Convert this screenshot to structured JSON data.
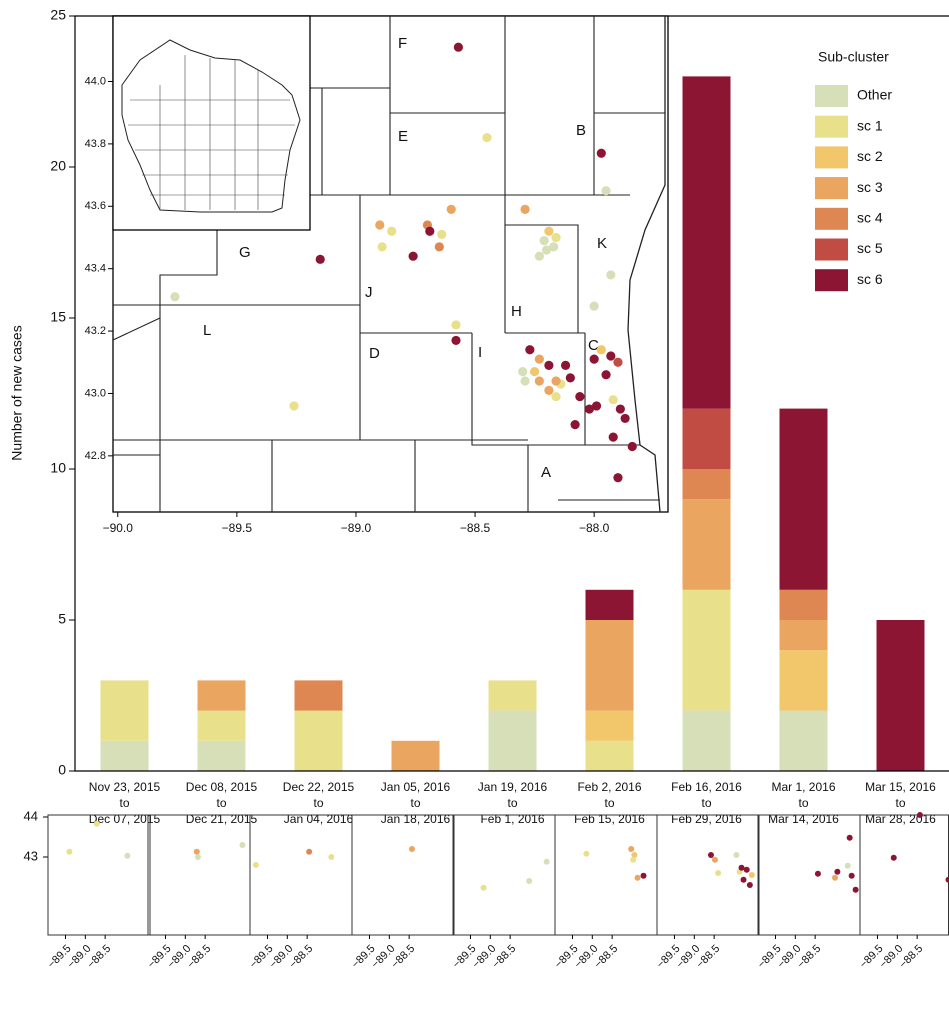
{
  "chart_data": [
    {
      "type": "bar",
      "y_label": "Number of new cases",
      "legend_title": "Sub-cluster",
      "categories": [
        [
          "Nov 23, 2015",
          "to",
          "Dec 07, 2015"
        ],
        [
          "Dec 08, 2015",
          "to",
          "Dec 21, 2015"
        ],
        [
          "Dec 22, 2015",
          "to",
          "Jan 04, 2016"
        ],
        [
          "Jan 05, 2016",
          "to",
          "Jan 18, 2016"
        ],
        [
          "Jan 19, 2016",
          "to",
          "Feb 1, 2016"
        ],
        [
          "Feb 2, 2016",
          "to",
          "Feb 15, 2016"
        ],
        [
          "Feb 16, 2016",
          "to",
          "Feb 29, 2016"
        ],
        [
          "Mar 1, 2016",
          "to",
          "Mar 14, 2016"
        ],
        [
          "Mar 15, 2016",
          "to",
          "Mar 28, 2016"
        ]
      ],
      "series": [
        {
          "name": "Other",
          "color": "#d6dfb8",
          "values": [
            1,
            1,
            0,
            0,
            2,
            0,
            2,
            2,
            0
          ]
        },
        {
          "name": "sc 1",
          "color": "#e9e08c",
          "values": [
            2,
            1,
            2,
            0,
            1,
            1,
            4,
            0,
            0
          ]
        },
        {
          "name": "sc 2",
          "color": "#f2c66a",
          "values": [
            0,
            0,
            0,
            0,
            0,
            1,
            0,
            2,
            0
          ]
        },
        {
          "name": "sc 3",
          "color": "#eaa560",
          "values": [
            0,
            1,
            0,
            1,
            0,
            3,
            3,
            1,
            0
          ]
        },
        {
          "name": "sc 4",
          "color": "#de8752",
          "values": [
            0,
            0,
            1,
            0,
            0,
            0,
            1,
            1,
            0
          ]
        },
        {
          "name": "sc 5",
          "color": "#c04c44",
          "values": [
            0,
            0,
            0,
            0,
            0,
            0,
            2,
            0,
            0
          ]
        },
        {
          "name": "sc 6",
          "color": "#8c1534",
          "values": [
            0,
            0,
            0,
            0,
            0,
            1,
            11,
            6,
            5
          ]
        }
      ],
      "ylim": [
        0,
        25
      ],
      "yticks": [
        0,
        5,
        10,
        15,
        20,
        25
      ],
      "grid": false
    },
    {
      "type": "scatter",
      "region_labels": [
        "F",
        "E",
        "B",
        "G",
        "J",
        "L",
        "H",
        "K",
        "D",
        "I",
        "C",
        "A"
      ],
      "xlim": [
        -90.02,
        -87.69
      ],
      "ylim": [
        42.62,
        44.21
      ],
      "xticks": [
        {
          "value": -90,
          "label": "−90.0"
        },
        {
          "value": -89.5,
          "label": "−89.5"
        },
        {
          "value": -89,
          "label": "−89.0"
        },
        {
          "value": -88.5,
          "label": "−88.5"
        },
        {
          "value": -88,
          "label": "−88.0"
        }
      ],
      "yticks": [
        42.8,
        {
          "value": 43,
          "label": "43.0"
        },
        43.2,
        43.4,
        43.6,
        43.8,
        {
          "value": 44,
          "label": "44.0"
        }
      ],
      "series": [
        {
          "color": "#d6dfb8",
          "x": [
            -87.95,
            -88.21,
            -88.17,
            -88.23,
            -88.2,
            -87.93,
            -88.0,
            -89.76,
            -88.3,
            -88.29
          ],
          "y": [
            43.65,
            43.49,
            43.47,
            43.44,
            43.46,
            43.38,
            43.28,
            43.31,
            43.07,
            43.04
          ]
        },
        {
          "color": "#e9e08c",
          "x": [
            -88.45,
            -88.85,
            -88.89,
            -88.64,
            -88.16,
            -89.26,
            -88.58,
            -88.16,
            -88.14,
            -87.92
          ],
          "y": [
            43.82,
            43.52,
            43.47,
            43.51,
            43.5,
            42.96,
            43.22,
            42.99,
            43.03,
            42.98
          ]
        },
        {
          "color": "#f2c66a",
          "x": [
            -88.19,
            -88.25,
            -87.97
          ],
          "y": [
            43.52,
            43.07,
            43.14
          ]
        },
        {
          "color": "#eaa560",
          "x": [
            -88.29,
            -88.9,
            -88.6,
            -88.23,
            -88.23,
            -88.16,
            -88.19
          ],
          "y": [
            43.59,
            43.54,
            43.59,
            43.11,
            43.04,
            43.04,
            43.01
          ]
        },
        {
          "color": "#de8752",
          "x": [
            -88.7,
            -88.65
          ],
          "y": [
            43.54,
            43.47
          ]
        },
        {
          "color": "#c04c44",
          "x": [
            -87.9
          ],
          "y": [
            43.1
          ]
        },
        {
          "color": "#8c1534",
          "x": [
            -88.57,
            -87.97,
            -88.69,
            -88.76,
            -89.15,
            -88.58,
            -88.27,
            -88.19,
            -88.12,
            -88.1,
            -88.06,
            -88.0,
            -87.93,
            -87.95,
            -87.99,
            -88.02,
            -87.89,
            -87.87,
            -87.92,
            -87.84,
            -88.08,
            -87.9
          ],
          "y": [
            44.11,
            43.77,
            43.52,
            43.44,
            43.43,
            43.17,
            43.14,
            43.09,
            43.09,
            43.05,
            42.99,
            43.11,
            43.12,
            43.06,
            42.96,
            42.95,
            42.95,
            42.92,
            42.86,
            42.83,
            42.9,
            42.73
          ]
        }
      ]
    },
    {
      "type": "scatter",
      "xlim": [
        -89.94,
        -87.37
      ],
      "ylim": [
        41.05,
        44.05
      ],
      "xticks": [
        {
          "value": -89.5,
          "label": "−89.5"
        },
        {
          "value": -89,
          "label": "−89.0"
        },
        {
          "value": -88.5,
          "label": "−88.5"
        }
      ],
      "yticks": [
        43,
        44
      ],
      "panels": [
        {
          "x": [
            -89.4,
            -88.71,
            -87.94
          ],
          "y": [
            43.13,
            43.83,
            43.03
          ],
          "colors": [
            "#e9e08c",
            "#e9e08c",
            "#d6dfb8"
          ]
        },
        {
          "x": [
            -88.71,
            -88.68,
            -87.56
          ],
          "y": [
            43.13,
            43.0,
            43.3
          ],
          "colors": [
            "#eaa560",
            "#d6dfb8",
            "#d6dfb8"
          ]
        },
        {
          "x": [
            -89.79,
            -88.45,
            -87.89
          ],
          "y": [
            42.8,
            43.13,
            43.0
          ],
          "colors": [
            "#e9e08c",
            "#de8752",
            "#e9e08c"
          ]
        },
        {
          "x": [
            -88.43
          ],
          "y": [
            43.2
          ],
          "colors": [
            "#eaa560"
          ]
        },
        {
          "x": [
            -89.17,
            -88.02,
            -87.58
          ],
          "y": [
            42.23,
            42.4,
            42.88
          ],
          "colors": [
            "#e9e08c",
            "#d6dfb8",
            "#d6dfb8"
          ]
        },
        {
          "x": [
            -89.15,
            -88.02,
            -87.94,
            -87.86,
            -87.71,
            -87.97
          ],
          "y": [
            43.08,
            43.2,
            43.05,
            42.48,
            42.53,
            42.93
          ],
          "colors": [
            "#e9e08c",
            "#eaa560",
            "#f2c66a",
            "#eaa560",
            "#8c1534",
            "#e9e08c"
          ]
        },
        {
          "x": [
            -88.58,
            -88.48,
            -88.4,
            -87.94,
            -87.86,
            -87.81,
            -87.68,
            -87.6,
            -87.76,
            -87.55
          ],
          "y": [
            43.05,
            42.93,
            42.6,
            43.05,
            42.63,
            42.73,
            42.68,
            42.3,
            42.43,
            42.55
          ],
          "colors": [
            "#8c1534",
            "#eaa560",
            "#e9e08c",
            "#d6dfb8",
            "#e9e08c",
            "#8c1534",
            "#8c1534",
            "#8c1534",
            "#8c1534",
            "#f2c66a"
          ]
        },
        {
          "x": [
            -88.43,
            -88.0,
            -87.94,
            -87.68,
            -87.63,
            -87.58,
            -87.48
          ],
          "y": [
            42.58,
            42.48,
            42.63,
            42.78,
            43.48,
            42.53,
            42.18
          ],
          "colors": [
            "#8c1534",
            "#eaa560",
            "#8c1534",
            "#d6dfb8",
            "#8c1534",
            "#8c1534",
            "#8c1534"
          ]
        },
        {
          "x": [
            -89.09,
            -88.43,
            -87.71
          ],
          "y": [
            42.98,
            44.05,
            42.43
          ],
          "colors": [
            "#8c1534",
            "#8c1534",
            "#8c1534"
          ]
        }
      ]
    }
  ]
}
